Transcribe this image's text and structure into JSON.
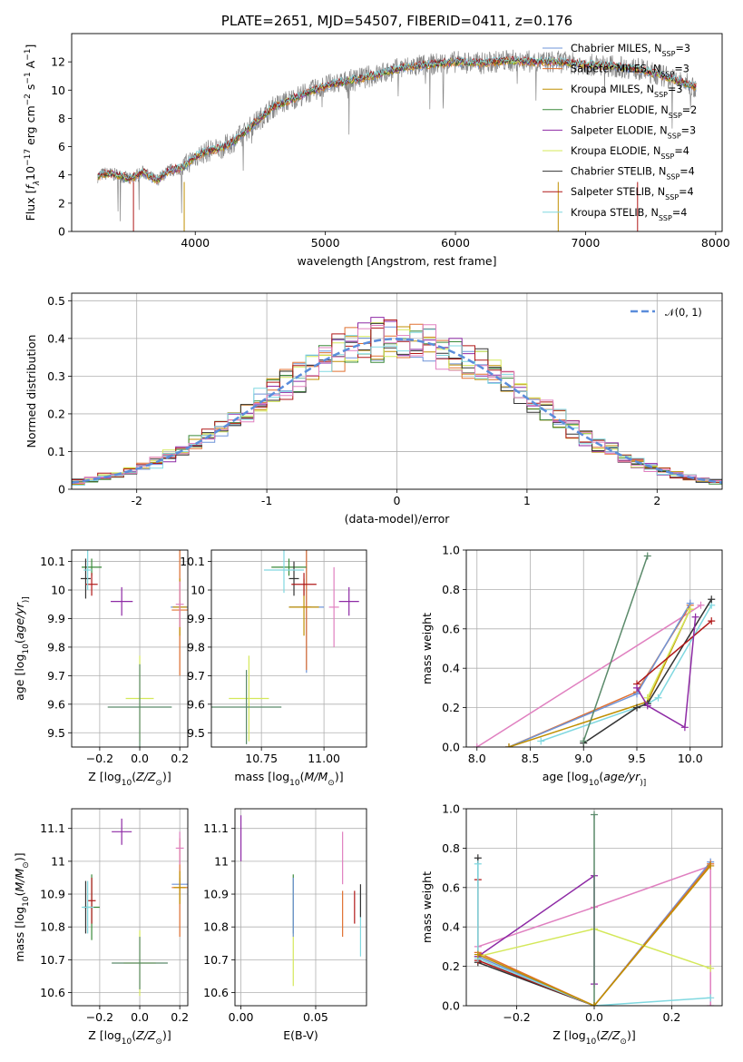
{
  "colors": {
    "Chabrier MILES": "#6f94d8",
    "Salpeter MILES": "#e07030",
    "Kroupa MILES": "#c08f00",
    "Chabrier ELODIE": "#3a8a3a",
    "Salpeter ELODIE": "#8e2aa5",
    "Kroupa ELODIE": "#d4e85a",
    "Chabrier STELIB": "#333333",
    "Salpeter STELIB": "#b01818",
    "Kroupa STELIB": "#80d8e0",
    "extra_pink": "#e080c0",
    "extra_green": "#5a8a6a",
    "extra_gray": "#888888",
    "gauss": "#5b8ddb"
  },
  "chart_data": [
    {
      "id": "spectrum",
      "type": "line",
      "title": "PLATE=2651, MJD=54507, FIBERID=0411, z=0.176",
      "xlabel": "wavelength [Angstrom, rest frame]",
      "ylabel_parts": [
        "Flux [",
        "f",
        "λ",
        "10",
        "−17",
        " erg cm",
        "−2",
        " s",
        "−1",
        " A",
        "−1",
        "]"
      ],
      "xlim": [
        3050,
        8050
      ],
      "ylim": [
        0,
        14
      ],
      "xticks": [
        4000,
        5000,
        6000,
        7000,
        8000
      ],
      "yticks": [
        0,
        2,
        4,
        6,
        8,
        10,
        12
      ],
      "continuum_x": [
        3250,
        3300,
        3400,
        3500,
        3600,
        3700,
        3800,
        3900,
        4000,
        4100,
        4200,
        4300,
        4400,
        4500,
        4600,
        4800,
        5000,
        5200,
        5400,
        5600,
        5800,
        6000,
        6200,
        6400,
        6600,
        6800,
        7000,
        7200,
        7400,
        7600,
        7850
      ],
      "continuum_y": [
        3.9,
        4.1,
        4.0,
        3.7,
        4.2,
        3.6,
        4.3,
        4.5,
        5.3,
        5.7,
        5.9,
        6.4,
        7.2,
        8.0,
        8.8,
        9.6,
        10.3,
        10.7,
        11.1,
        11.6,
        11.8,
        12.0,
        11.9,
        12.1,
        12.0,
        12.0,
        11.8,
        11.7,
        11.5,
        11.0,
        10.2
      ],
      "series_names": [
        "Chabrier MILES",
        "Salpeter MILES",
        "Kroupa MILES",
        "Chabrier ELODIE",
        "Salpeter ELODIE",
        "Kroupa ELODIE",
        "Chabrier STELIB",
        "Salpeter STELIB",
        "Kroupa STELIB"
      ],
      "legend": [
        {
          "name": "Chabrier MILES",
          "n": "3"
        },
        {
          "name": "Salpeter MILES",
          "n": "3"
        },
        {
          "name": "Kroupa MILES",
          "n": "3"
        },
        {
          "name": "Chabrier ELODIE",
          "n": "2"
        },
        {
          "name": "Salpeter ELODIE",
          "n": "3"
        },
        {
          "name": "Kroupa ELODIE",
          "n": "4"
        },
        {
          "name": "Chabrier STELIB",
          "n": "4"
        },
        {
          "name": "Salpeter STELIB",
          "n": "4"
        },
        {
          "name": "Kroupa STELIB",
          "n": "4"
        }
      ],
      "legend_position": "right"
    },
    {
      "id": "residual_hist",
      "type": "line",
      "xlabel": "(data-model)/error",
      "ylabel": "Normed distribution",
      "xlim": [
        -2.5,
        2.5
      ],
      "ylim": [
        0,
        0.52
      ],
      "xticks": [
        -2,
        -1,
        0,
        1,
        2
      ],
      "yticks": [
        0.0,
        0.1,
        0.2,
        0.3,
        0.4,
        0.5
      ],
      "grid": true,
      "legend_label": "𝒩(0, 1)",
      "legend_position": "top-right",
      "gaussian_mean": 0,
      "gaussian_sigma": 1,
      "bin_width": 0.1
    },
    {
      "id": "age_vs_Z",
      "type": "scatter",
      "xlabel_parts": [
        "Z [log",
        "10",
        "(",
        "Z/Z",
        "⊙",
        ")]"
      ],
      "ylabel_parts": [
        "age  [log",
        "10",
        "(",
        "age/yr",
        ")]"
      ],
      "xlim": [
        -0.34,
        0.24
      ],
      "ylim": [
        9.45,
        10.14
      ],
      "xticks": [
        -0.2,
        0.0,
        0.2
      ],
      "xtick_labels": [
        "−0.2",
        "0.0",
        "0.2"
      ],
      "yticks": [
        9.5,
        9.6,
        9.7,
        9.8,
        9.9,
        10.0,
        10.1
      ],
      "grid": true,
      "points": [
        {
          "s": "Chabrier MILES",
          "x": 0.2,
          "y": 9.94,
          "xerr": 0.045,
          "yerr": 0.03
        },
        {
          "s": "Salpeter MILES",
          "x": 0.2,
          "y": 9.93,
          "xerr": 0.04,
          "yerr": 0.23
        },
        {
          "s": "Kroupa MILES",
          "x": 0.2,
          "y": 9.94,
          "xerr": 0.035,
          "yerr": 0.1
        },
        {
          "s": "Chabrier ELODIE",
          "x": -0.24,
          "y": 10.08,
          "xerr": 0.05,
          "yerr": 0.03
        },
        {
          "s": "Salpeter ELODIE",
          "x": -0.09,
          "y": 9.96,
          "xerr": 0.055,
          "yerr": 0.05
        },
        {
          "s": "Kroupa ELODIE",
          "x": 0.0,
          "y": 9.62,
          "xerr": 0.07,
          "yerr": 0.15
        },
        {
          "s": "Chabrier STELIB",
          "x": -0.27,
          "y": 10.04,
          "xerr": 0.025,
          "yerr": 0.07
        },
        {
          "s": "Salpeter STELIB",
          "x": -0.24,
          "y": 10.02,
          "xerr": 0.03,
          "yerr": 0.04
        },
        {
          "s": "Kroupa STELIB",
          "x": -0.26,
          "y": 10.07,
          "xerr": 0.02,
          "yerr": 0.07
        },
        {
          "s": "extra_pink",
          "x": 0.2,
          "y": 9.95,
          "xerr": 0.02,
          "yerr": 0.08
        },
        {
          "s": "extra_green",
          "x": -0.0,
          "y": 9.59,
          "xerr": 0.16,
          "yerr": 0.15
        }
      ]
    },
    {
      "id": "age_vs_mass",
      "type": "scatter",
      "xlabel_parts": [
        "mass [log",
        "10",
        "(",
        "M/M",
        "⊙",
        ")]"
      ],
      "xlim": [
        10.55,
        11.17
      ],
      "ylim": [
        9.45,
        10.14
      ],
      "xticks": [
        10.75,
        11.0
      ],
      "xtick_labels": [
        "10.75",
        "11.00"
      ],
      "yticks": [
        9.5,
        9.6,
        9.7,
        9.8,
        9.9,
        10.0,
        10.1
      ],
      "grid": true,
      "points": [
        {
          "s": "Chabrier MILES",
          "x": 10.93,
          "y": 9.94,
          "xerr": 0.07,
          "yerr": 0.23
        },
        {
          "s": "Salpeter MILES",
          "x": 10.93,
          "y": 9.94,
          "xerr": 0.02,
          "yerr": 0.22
        },
        {
          "s": "Kroupa MILES",
          "x": 10.92,
          "y": 9.94,
          "xerr": 0.06,
          "yerr": 0.1
        },
        {
          "s": "Chabrier ELODIE",
          "x": 10.86,
          "y": 10.08,
          "xerr": 0.07,
          "yerr": 0.03
        },
        {
          "s": "Salpeter ELODIE",
          "x": 11.1,
          "y": 9.96,
          "xerr": 0.04,
          "yerr": 0.05
        },
        {
          "s": "Kroupa ELODIE",
          "x": 10.7,
          "y": 9.62,
          "xerr": 0.08,
          "yerr": 0.15
        },
        {
          "s": "Chabrier STELIB",
          "x": 10.88,
          "y": 10.04,
          "xerr": 0.02,
          "yerr": 0.06
        },
        {
          "s": "Salpeter STELIB",
          "x": 10.92,
          "y": 10.02,
          "xerr": 0.05,
          "yerr": 0.04
        },
        {
          "s": "Kroupa STELIB",
          "x": 10.84,
          "y": 10.07,
          "xerr": 0.08,
          "yerr": 0.08
        },
        {
          "s": "extra_pink",
          "x": 11.04,
          "y": 9.94,
          "xerr": 0.02,
          "yerr": 0.14
        },
        {
          "s": "extra_green",
          "x": 10.69,
          "y": 9.59,
          "xerr": 0.14,
          "yerr": 0.13
        }
      ]
    },
    {
      "id": "massweight_vs_age",
      "type": "line",
      "xlabel_parts": [
        "age  [log",
        "10",
        "(",
        "age/yr",
        ")]"
      ],
      "ylabel": "mass weight",
      "xlim": [
        7.9,
        10.3
      ],
      "ylim": [
        0,
        1
      ],
      "xticks": [
        8.0,
        8.5,
        9.0,
        9.5,
        10.0
      ],
      "xtick_labels": [
        "8.0",
        "8.5",
        "9.0",
        "9.5",
        "10.0"
      ],
      "yticks": [
        0.0,
        0.2,
        0.4,
        0.6,
        0.8,
        1.0
      ],
      "ytick_labels": [
        "0.0",
        "0.2",
        "0.4",
        "0.6",
        "0.8",
        "1.0"
      ],
      "grid": true,
      "series": [
        {
          "s": "extra_pink",
          "x": [
            8.0,
            10.1
          ],
          "y": [
            0.0,
            0.72
          ]
        },
        {
          "s": "Salpeter MILES",
          "x": [
            8.3,
            9.5,
            10.0
          ],
          "y": [
            0.0,
            0.28,
            0.72
          ]
        },
        {
          "s": "Chabrier MILES",
          "x": [
            8.3,
            9.5,
            10.0
          ],
          "y": [
            0.0,
            0.27,
            0.73
          ]
        },
        {
          "s": "Kroupa MILES",
          "x": [
            8.3,
            9.6,
            10.0
          ],
          "y": [
            0.0,
            0.23,
            0.7
          ]
        },
        {
          "s": "Kroupa STELIB",
          "x": [
            8.6,
            9.6,
            9.7,
            10.2
          ],
          "y": [
            0.03,
            0.22,
            0.25,
            0.72
          ]
        },
        {
          "s": "Kroupa ELODIE",
          "x": [
            9.6,
            10.0
          ],
          "y": [
            0.25,
            0.7
          ]
        },
        {
          "s": "Chabrier STELIB",
          "x": [
            9.0,
            9.5,
            9.6,
            10.2
          ],
          "y": [
            0.02,
            0.2,
            0.22,
            0.75
          ]
        },
        {
          "s": "Salpeter STELIB",
          "x": [
            9.5,
            10.2
          ],
          "y": [
            0.32,
            0.64
          ]
        },
        {
          "s": "Salpeter ELODIE",
          "x": [
            9.5,
            9.6,
            9.95,
            10.05
          ],
          "y": [
            0.3,
            0.21,
            0.1,
            0.66
          ]
        },
        {
          "s": "extra_green",
          "x": [
            9.0,
            9.6
          ],
          "y": [
            0.03,
            0.97
          ]
        }
      ]
    },
    {
      "id": "mass_vs_Z",
      "type": "scatter",
      "xlabel_parts": [
        "Z [log",
        "10",
        "(",
        "Z/Z",
        "⊙",
        ")]"
      ],
      "ylabel_parts": [
        "mass [log",
        "10",
        "(",
        "M/M",
        "⊙",
        ")]"
      ],
      "xlim": [
        -0.34,
        0.24
      ],
      "ylim": [
        10.56,
        11.16
      ],
      "xticks": [
        -0.2,
        0.0,
        0.2
      ],
      "xtick_labels": [
        "−0.2",
        "0.0",
        "0.2"
      ],
      "yticks": [
        10.6,
        10.7,
        10.8,
        10.9,
        11.0,
        11.1
      ],
      "grid": true,
      "points": [
        {
          "s": "Chabrier MILES",
          "x": 0.2,
          "y": 10.93,
          "xerr": 0.04,
          "yerr": 0.02
        },
        {
          "s": "Salpeter MILES",
          "x": 0.2,
          "y": 10.92,
          "xerr": 0.04,
          "yerr": 0.15
        },
        {
          "s": "Kroupa MILES",
          "x": 0.2,
          "y": 10.92,
          "xerr": 0.03,
          "yerr": 0.05
        },
        {
          "s": "Chabrier ELODIE",
          "x": -0.24,
          "y": 10.86,
          "xerr": 0.04,
          "yerr": 0.1
        },
        {
          "s": "Salpeter ELODIE",
          "x": -0.09,
          "y": 11.09,
          "xerr": 0.05,
          "yerr": 0.04
        },
        {
          "s": "Kroupa ELODIE",
          "x": 0.0,
          "y": 10.69,
          "xerr": 0.08,
          "yerr": 0.1
        },
        {
          "s": "Chabrier STELIB",
          "x": -0.27,
          "y": 10.86,
          "xerr": 0.01,
          "yerr": 0.08
        },
        {
          "s": "Salpeter STELIB",
          "x": -0.24,
          "y": 10.88,
          "xerr": 0.02,
          "yerr": 0.07
        },
        {
          "s": "Kroupa STELIB",
          "x": -0.26,
          "y": 10.86,
          "xerr": 0.03,
          "yerr": 0.08
        },
        {
          "s": "extra_pink",
          "x": 0.2,
          "y": 11.04,
          "xerr": 0.02,
          "yerr": 0.05
        },
        {
          "s": "extra_green",
          "x": -0.0,
          "y": 10.69,
          "xerr": 0.14,
          "yerr": 0.08
        }
      ]
    },
    {
      "id": "mass_vs_ebv",
      "type": "scatter",
      "xlabel": "E(B-V)",
      "xlim": [
        -0.004,
        0.084
      ],
      "ylim": [
        10.56,
        11.16
      ],
      "xticks": [
        0.0,
        0.05
      ],
      "xtick_labels": [
        "0.00",
        "0.05"
      ],
      "yticks": [
        10.6,
        10.7,
        10.8,
        10.9,
        11.0,
        11.1
      ],
      "grid": true,
      "points": [
        {
          "s": "Salpeter ELODIE",
          "x": 0.0,
          "y": 11.07,
          "xerr": 0.0,
          "yerr": 0.07
        },
        {
          "s": "Kroupa ELODIE",
          "x": 0.035,
          "y": 10.7,
          "xerr": 0.0,
          "yerr": 0.08
        },
        {
          "s": "Chabrier ELODIE",
          "x": 0.035,
          "y": 10.87,
          "xerr": 0.0,
          "yerr": 0.09
        },
        {
          "s": "Chabrier MILES",
          "x": 0.035,
          "y": 10.86,
          "xerr": 0.0,
          "yerr": 0.09
        },
        {
          "s": "Salpeter MILES",
          "x": 0.068,
          "y": 10.84,
          "xerr": 0.0,
          "yerr": 0.07
        },
        {
          "s": "extra_pink",
          "x": 0.068,
          "y": 11.01,
          "xerr": 0.0,
          "yerr": 0.08
        },
        {
          "s": "Salpeter STELIB",
          "x": 0.076,
          "y": 10.86,
          "xerr": 0.0,
          "yerr": 0.05
        },
        {
          "s": "Kroupa STELIB",
          "x": 0.08,
          "y": 10.81,
          "xerr": 0.0,
          "yerr": 0.1
        },
        {
          "s": "Chabrier STELIB",
          "x": 0.08,
          "y": 10.88,
          "xerr": 0.0,
          "yerr": 0.05
        }
      ]
    },
    {
      "id": "massweight_vs_Z",
      "type": "line",
      "xlabel_parts": [
        "Z [log",
        "10",
        "(",
        "Z/Z",
        "⊙",
        ")]"
      ],
      "ylabel": "mass weight",
      "xlim": [
        -0.33,
        0.33
      ],
      "ylim": [
        0,
        1
      ],
      "xticks": [
        -0.2,
        0.0,
        0.2
      ],
      "xtick_labels": [
        "−0.2",
        "0.0",
        "0.2"
      ],
      "yticks": [
        0.0,
        0.2,
        0.4,
        0.6,
        0.8,
        1.0
      ],
      "ytick_labels": [
        "0.0",
        "0.2",
        "0.4",
        "0.6",
        "0.8",
        "1.0"
      ],
      "grid": true,
      "series": [
        {
          "s": "extra_pink",
          "x": [
            -0.3,
            0.0,
            0.3,
            0.3
          ],
          "y": [
            0.3,
            0.5,
            0.71,
            0.0
          ]
        },
        {
          "s": "Chabrier MILES",
          "x": [
            -0.3,
            0.0,
            0.3
          ],
          "y": [
            0.25,
            0.0,
            0.73
          ]
        },
        {
          "s": "Salpeter MILES",
          "x": [
            -0.3,
            0.0,
            0.3
          ],
          "y": [
            0.27,
            0.0,
            0.72
          ]
        },
        {
          "s": "Kroupa ELODIE",
          "x": [
            -0.3,
            0.0,
            0.3
          ],
          "y": [
            0.25,
            0.39,
            0.19
          ]
        },
        {
          "s": "Salpeter ELODIE",
          "x": [
            -0.3,
            0.0,
            0.0
          ],
          "y": [
            0.25,
            0.66,
            0.11
          ]
        },
        {
          "s": "Chabrier STELIB",
          "x": [
            -0.3,
            -0.3,
            0.0
          ],
          "y": [
            0.75,
            0.22,
            0.0
          ]
        },
        {
          "s": "Salpeter STELIB",
          "x": [
            -0.3,
            -0.3,
            0.0
          ],
          "y": [
            0.64,
            0.23,
            0.0
          ]
        },
        {
          "s": "Kroupa STELIB",
          "x": [
            -0.3,
            -0.3,
            0.0,
            0.3
          ],
          "y": [
            0.72,
            0.24,
            0.0,
            0.04
          ]
        },
        {
          "s": "extra_green",
          "x": [
            0.0,
            0.0
          ],
          "y": [
            0.0,
            0.97
          ]
        },
        {
          "s": "Kroupa MILES",
          "x": [
            -0.3,
            0.0,
            0.3
          ],
          "y": [
            0.26,
            0.0,
            0.71
          ]
        }
      ]
    }
  ]
}
